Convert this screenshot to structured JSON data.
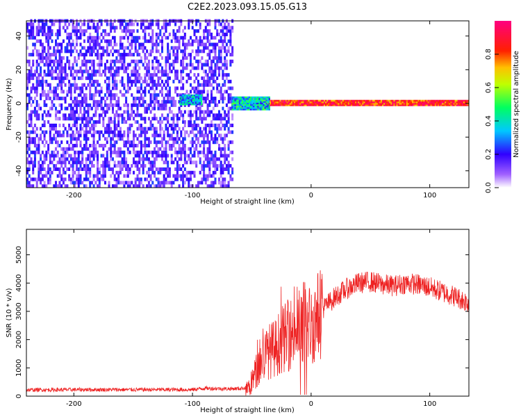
{
  "title": "C2E2.2023.093.15.05.G13",
  "chart_data": [
    {
      "type": "heatmap",
      "xlabel": "Height of straight line (km)",
      "ylabel": "Frequency (Hz)",
      "xlim": [
        -240,
        133
      ],
      "ylim": [
        -50,
        49
      ],
      "x_ticks": [
        -200,
        -100,
        0,
        100
      ],
      "x_tick_labels": [
        "-200",
        "-100",
        "0",
        "100"
      ],
      "y_ticks": [
        -40,
        -20,
        0,
        20,
        40
      ],
      "y_tick_labels": [
        "-40",
        "-20",
        "0",
        "20",
        "40"
      ],
      "grid": false,
      "colorbar": {
        "label": "Normalized spectral amplitude",
        "range": [
          0,
          1
        ],
        "ticks": [
          0.0,
          0.2,
          0.4,
          0.6,
          0.8
        ],
        "tick_labels": [
          "0.0",
          "0.2",
          "0.4",
          "0.6",
          "0.8"
        ]
      },
      "regions": [
        {
          "x": [
            -240,
            -67
          ],
          "description_level": "noise",
          "amplitude_range": [
            0.05,
            0.25
          ]
        },
        {
          "x": [
            -111,
            -92
          ],
          "y": [
            -1,
            5
          ],
          "amplitude_range": [
            0.2,
            0.5
          ]
        },
        {
          "x": [
            -67,
            -35
          ],
          "y": [
            -4,
            4
          ],
          "amplitude_range": [
            0.2,
            0.55
          ]
        },
        {
          "x": [
            -35,
            133
          ],
          "y": [
            -1.5,
            1.5
          ],
          "amplitude_range": [
            0.7,
            1.0
          ]
        }
      ]
    },
    {
      "type": "line",
      "xlabel": "Height of straight line (km)",
      "ylabel": "SNR (10 * v/v)",
      "xlim": [
        -240,
        133
      ],
      "ylim": [
        0,
        5900
      ],
      "x_ticks": [
        -200,
        -100,
        0,
        100
      ],
      "x_tick_labels": [
        "-200",
        "-100",
        "0",
        "100"
      ],
      "y_ticks": [
        0,
        1000,
        2000,
        3000,
        4000,
        5000
      ],
      "y_tick_labels": [
        "0",
        "1000",
        "2000",
        "3000",
        "4000",
        "5000"
      ],
      "grid": false,
      "color": "#ee2222",
      "x": [
        -240,
        -200,
        -150,
        -100,
        -90,
        -70,
        -60,
        -52,
        -48,
        -45,
        -40,
        -35,
        -30,
        -25,
        -20,
        -15,
        -10,
        -5,
        0,
        5,
        10,
        20,
        30,
        40,
        50,
        60,
        70,
        80,
        90,
        100,
        110,
        120,
        133
      ],
      "y": [
        220,
        230,
        230,
        230,
        280,
        260,
        270,
        320,
        700,
        1000,
        1400,
        1600,
        1700,
        2000,
        2100,
        2300,
        2400,
        2700,
        2500,
        2800,
        3100,
        3500,
        3800,
        4000,
        4050,
        3950,
        3900,
        4000,
        3950,
        3850,
        3700,
        3550,
        3300
      ]
    }
  ]
}
